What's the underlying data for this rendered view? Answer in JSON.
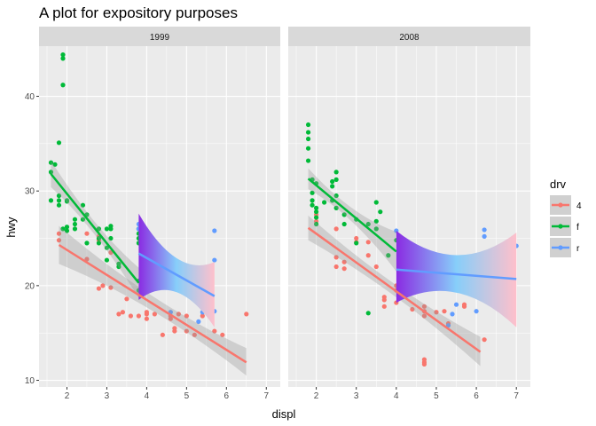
{
  "chart_data": {
    "type": "scatter",
    "title": "A plot for expository purposes",
    "xlabel": "displ",
    "ylabel": "hwy",
    "xlim": [
      1.3,
      7.35
    ],
    "ylim": [
      9.3,
      45.3
    ],
    "xticks": [
      2,
      3,
      4,
      5,
      6,
      7
    ],
    "yticks": [
      10,
      20,
      30,
      40
    ],
    "grid": true,
    "legend": {
      "title": "drv",
      "position": "right",
      "entries": [
        {
          "label": "4",
          "color": "#F8766D"
        },
        {
          "label": "f",
          "color": "#00BA38"
        },
        {
          "label": "r",
          "color": "#619CFF"
        }
      ]
    },
    "panels": [
      {
        "label": "1999",
        "series": [
          {
            "name": "4",
            "color": "#F8766D",
            "points": [
              [
                1.8,
                25.5
              ],
              [
                1.8,
                24.8
              ],
              [
                2.5,
                25.5
              ],
              [
                2.5,
                22.8
              ],
              [
                2.8,
                25.2
              ],
              [
                2.8,
                24.8
              ],
              [
                2.8,
                19.7
              ],
              [
                2.9,
                20
              ],
              [
                3.1,
                19.8
              ],
              [
                3.1,
                23.5
              ],
              [
                3.3,
                17
              ],
              [
                3.4,
                17.2
              ],
              [
                3.5,
                18.6
              ],
              [
                3.6,
                16.8
              ],
              [
                3.8,
                16.8
              ],
              [
                4,
                17
              ],
              [
                4,
                17.2
              ],
              [
                4,
                16.5
              ],
              [
                4.2,
                17
              ],
              [
                4.4,
                14.8
              ],
              [
                4.6,
                16.5
              ],
              [
                4.6,
                16.8
              ],
              [
                4.7,
                15.5
              ],
              [
                4.7,
                15.2
              ],
              [
                4.8,
                17
              ],
              [
                5,
                15.2
              ],
              [
                5,
                16.8
              ],
              [
                5.2,
                14.8
              ],
              [
                5.4,
                16.8
              ],
              [
                5.7,
                15.2
              ],
              [
                5.9,
                14.8
              ],
              [
                6.5,
                17
              ]
            ],
            "trend": {
              "x": [
                1.8,
                6.5
              ],
              "y": [
                24.3,
                11.9
              ]
            },
            "ci": {
              "lower": [
                22.3,
                10.5
              ],
              "upper": [
                26.3,
                13.4
              ]
            }
          },
          {
            "name": "f",
            "color": "#00BA38",
            "points": [
              [
                1.6,
                32
              ],
              [
                1.6,
                33
              ],
              [
                1.6,
                29
              ],
              [
                1.7,
                32.8
              ],
              [
                1.8,
                29
              ],
              [
                1.8,
                29.5
              ],
              [
                1.8,
                35.1
              ],
              [
                1.8,
                28.5
              ],
              [
                1.9,
                44
              ],
              [
                1.9,
                44.4
              ],
              [
                1.9,
                41.2
              ],
              [
                1.9,
                26
              ],
              [
                2,
                28.9
              ],
              [
                2,
                29
              ],
              [
                2,
                26.2
              ],
              [
                2,
                25.8
              ],
              [
                2.2,
                26.5
              ],
              [
                2.2,
                26
              ],
              [
                2.2,
                27
              ],
              [
                2.4,
                28.5
              ],
              [
                2.4,
                27
              ],
              [
                2.5,
                27.5
              ],
              [
                2.5,
                24.5
              ],
              [
                2.8,
                26
              ],
              [
                2.8,
                25
              ],
              [
                2.8,
                24.5
              ],
              [
                3,
                26
              ],
              [
                3,
                24
              ],
              [
                3,
                22.7
              ],
              [
                3.1,
                26
              ],
              [
                3.1,
                26.3
              ],
              [
                3.1,
                25
              ],
              [
                3.3,
                22.3
              ],
              [
                3.3,
                22
              ],
              [
                3.8,
                26
              ],
              [
                3.8,
                25.5
              ],
              [
                3.8,
                25
              ],
              [
                3.8,
                24.5
              ],
              [
                3.8,
                20.5
              ],
              [
                3.8,
                19.5
              ]
            ],
            "trend": {
              "x": [
                1.6,
                3.8
              ],
              "y": [
                31.8,
                20.3
              ]
            },
            "ci": {
              "lower": [
                30.4,
                18.7
              ],
              "upper": [
                33.2,
                21.9
              ]
            }
          },
          {
            "name": "r",
            "color": "#619CFF",
            "points": [
              [
                3.8,
                26
              ],
              [
                3.8,
                26.5
              ],
              [
                4,
                25.5
              ],
              [
                4.6,
                17.2
              ],
              [
                5.3,
                16.2
              ],
              [
                5.4,
                17.2
              ],
              [
                5.7,
                25.8
              ],
              [
                5.7,
                22.7
              ],
              [
                5.7,
                17.3
              ]
            ],
            "trend": {
              "x": [
                3.8,
                5.7
              ],
              "y": [
                23.4,
                18.9
              ]
            },
            "ci": {
              "lower": [
                18.5,
                15.6
              ],
              "upper": [
                27.6,
                22.5
              ]
            }
          }
        ]
      },
      {
        "label": "2008",
        "series": [
          {
            "name": "4",
            "color": "#F8766D",
            "points": [
              [
                2,
                26.8
              ],
              [
                2,
                27.5
              ],
              [
                2.5,
                26
              ],
              [
                2.5,
                23
              ],
              [
                2.5,
                22
              ],
              [
                2.7,
                22.5
              ],
              [
                2.7,
                21.8
              ],
              [
                3,
                25
              ],
              [
                3,
                24.6
              ],
              [
                3.3,
                24.6
              ],
              [
                3.3,
                23.2
              ],
              [
                3.5,
                22
              ],
              [
                3.7,
                18.8
              ],
              [
                3.7,
                17.8
              ],
              [
                3.7,
                18.5
              ],
              [
                4,
                18.2
              ],
              [
                4,
                19.5
              ],
              [
                4,
                20
              ],
              [
                4.2,
                19
              ],
              [
                4.4,
                17.5
              ],
              [
                4.6,
                19.8
              ],
              [
                4.7,
                17.8
              ],
              [
                4.7,
                17.3
              ],
              [
                4.7,
                16.8
              ],
              [
                4.7,
                12.2
              ],
              [
                4.7,
                11.9
              ],
              [
                4.7,
                11.7
              ],
              [
                5,
                17.2
              ],
              [
                5.2,
                17.3
              ],
              [
                5.3,
                16
              ],
              [
                5.4,
                19.8
              ],
              [
                5.7,
                17.8
              ],
              [
                5.7,
                18
              ],
              [
                5.9,
                19.2
              ],
              [
                6.2,
                14.3
              ]
            ],
            "trend": {
              "x": [
                1.8,
                6.1
              ],
              "y": [
                26.1,
                13
              ]
            },
            "ci": {
              "lower": [
                24.8,
                11.5
              ],
              "upper": [
                27.4,
                14.6
              ]
            }
          },
          {
            "name": "f",
            "color": "#00BA38",
            "points": [
              [
                1.8,
                35.5
              ],
              [
                1.8,
                34.5
              ],
              [
                1.8,
                33.2
              ],
              [
                1.8,
                37
              ],
              [
                1.8,
                36.2
              ],
              [
                1.9,
                31.2
              ],
              [
                1.9,
                29.8
              ],
              [
                1.9,
                29
              ],
              [
                1.9,
                28.5
              ],
              [
                2,
                28.2
              ],
              [
                2,
                27.8
              ],
              [
                2,
                27.2
              ],
              [
                2,
                26.5
              ],
              [
                2,
                30.8
              ],
              [
                2.2,
                28.8
              ],
              [
                2.4,
                31
              ],
              [
                2.4,
                30.5
              ],
              [
                2.4,
                29
              ],
              [
                2.5,
                32
              ],
              [
                2.5,
                31.2
              ],
              [
                2.5,
                29.5
              ],
              [
                2.5,
                28.2
              ],
              [
                2.7,
                27.5
              ],
              [
                2.7,
                26.5
              ],
              [
                3,
                27
              ],
              [
                3,
                24.5
              ],
              [
                3.3,
                26.5
              ],
              [
                3.3,
                17.1
              ],
              [
                3.5,
                26.8
              ],
              [
                3.5,
                28.8
              ],
              [
                3.5,
                26
              ],
              [
                3.6,
                27.8
              ],
              [
                3.8,
                23.2
              ],
              [
                4,
                24.8
              ]
            ],
            "trend": {
              "x": [
                1.8,
                4
              ],
              "y": [
                31.3,
                23.6
              ]
            },
            "ci": {
              "lower": [
                30.2,
                21.5
              ],
              "upper": [
                32.4,
                25.7
              ]
            }
          },
          {
            "name": "r",
            "color": "#619CFF",
            "points": [
              [
                4,
                25.8
              ],
              [
                5.3,
                15.8
              ],
              [
                5.4,
                17
              ],
              [
                5.5,
                18
              ],
              [
                6,
                17.3
              ],
              [
                6.2,
                25.9
              ],
              [
                6.2,
                25.2
              ],
              [
                7,
                24.2
              ]
            ],
            "trend": {
              "x": [
                4,
                7
              ],
              "y": [
                21.7,
                20.7
              ]
            },
            "ci": {
              "lower": [
                18.2,
                15.6
              ],
              "upper": [
                25.8,
                25.6
              ]
            }
          }
        ]
      }
    ]
  }
}
